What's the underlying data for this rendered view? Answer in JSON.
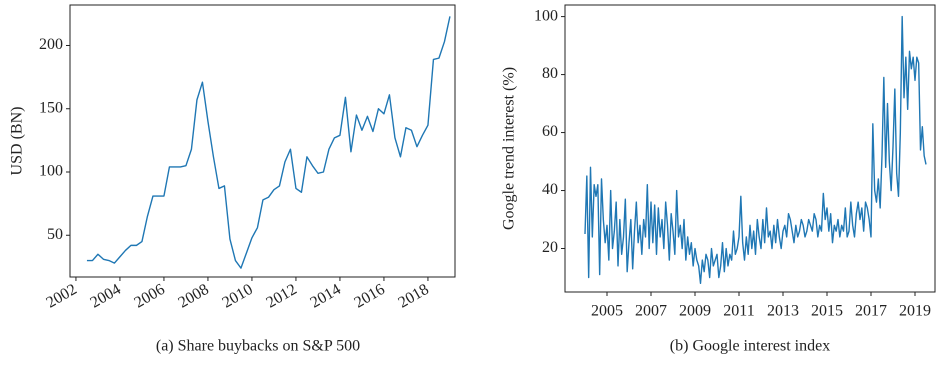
{
  "chart_data": [
    {
      "type": "line",
      "caption": "(a) Share buybacks on S&P 500",
      "ylabel": "USD (BN)",
      "x": [
        2002.5,
        2002.75,
        2003,
        2003.25,
        2003.5,
        2003.75,
        2004,
        2004.25,
        2004.5,
        2004.75,
        2005,
        2005.25,
        2005.5,
        2005.75,
        2006,
        2006.25,
        2006.5,
        2006.75,
        2007,
        2007.25,
        2007.5,
        2007.75,
        2008,
        2008.25,
        2008.5,
        2008.75,
        2009,
        2009.25,
        2009.5,
        2009.75,
        2010,
        2010.25,
        2010.5,
        2010.75,
        2011,
        2011.25,
        2011.5,
        2011.75,
        2012,
        2012.25,
        2012.5,
        2012.75,
        2013,
        2013.25,
        2013.5,
        2013.75,
        2014,
        2014.25,
        2014.5,
        2014.75,
        2015,
        2015.25,
        2015.5,
        2015.75,
        2016,
        2016.25,
        2016.5,
        2016.75,
        2017,
        2017.25,
        2017.5,
        2017.75,
        2018,
        2018.25,
        2018.5,
        2018.75,
        2019
      ],
      "series": [
        {
          "color": "#1f77b4",
          "values": [
            30,
            30,
            35,
            31,
            30,
            28,
            33,
            38,
            42,
            42,
            45,
            65,
            81,
            81,
            81,
            104,
            104,
            104,
            105,
            118,
            157,
            171,
            140,
            112,
            87,
            89,
            47,
            30,
            24,
            36,
            48,
            56,
            78,
            80,
            86,
            89,
            108,
            118,
            87,
            84,
            112,
            105,
            99,
            100,
            118,
            127,
            129,
            159,
            116,
            145,
            133,
            144,
            132,
            150,
            146,
            161,
            127,
            112,
            135,
            133,
            120,
            129,
            137,
            189,
            190,
            203,
            223
          ]
        }
      ],
      "xlim": [
        2001.73,
        2019.23
      ],
      "xticks": [
        2002,
        2004,
        2006,
        2008,
        2010,
        2012,
        2014,
        2016,
        2018
      ],
      "ylim": [
        17,
        232
      ],
      "yticks": [
        50,
        100,
        150,
        200
      ]
    },
    {
      "type": "line",
      "caption": "(b) Google interest index",
      "ylabel": "Google trend interest (%)",
      "categories": [
        null,
        null,
        null,
        null,
        null,
        null,
        null,
        null,
        null,
        null,
        null,
        null,
        "2005",
        null,
        null,
        null,
        null,
        null,
        null,
        null,
        null,
        null,
        null,
        null,
        null,
        null,
        null,
        null,
        null,
        null,
        null,
        null,
        null,
        null,
        null,
        null,
        "2007",
        null,
        null,
        null,
        null,
        null,
        null,
        null,
        null,
        null,
        null,
        null,
        null,
        null,
        null,
        null,
        null,
        null,
        null,
        null,
        null,
        null,
        null,
        null,
        "2009",
        null,
        null,
        null,
        null,
        null,
        null,
        null,
        null,
        null,
        null,
        null,
        null,
        null,
        null,
        null,
        null,
        null,
        null,
        null,
        null,
        null,
        null,
        null,
        "2011",
        null,
        null,
        null,
        null,
        null,
        null,
        null,
        null,
        null,
        null,
        null,
        null,
        null,
        null,
        null,
        null,
        null,
        null,
        null,
        null,
        null,
        null,
        null,
        "2013",
        null,
        null,
        null,
        null,
        null,
        null,
        null,
        null,
        null,
        null,
        null,
        null,
        null,
        null,
        null,
        null,
        null,
        null,
        null,
        null,
        null,
        null,
        null,
        "2015",
        null,
        null,
        null,
        null,
        null,
        null,
        null,
        null,
        null,
        null,
        null,
        null,
        null,
        null,
        null,
        null,
        null,
        null,
        null,
        null,
        null,
        null,
        null,
        "2017",
        null,
        null,
        null,
        null,
        null,
        null,
        null,
        null,
        null,
        null,
        null,
        null,
        null,
        null,
        null,
        null,
        null,
        null,
        null,
        null,
        null,
        null,
        null,
        "2019",
        null,
        null,
        null,
        null,
        null,
        null
      ],
      "series": [
        {
          "color": "#1f77b4",
          "values": [
            25,
            45,
            10,
            48,
            24,
            42,
            38,
            42,
            11,
            44,
            30,
            22,
            28,
            16,
            40,
            20,
            26,
            36,
            14,
            30,
            18,
            24,
            37,
            12,
            22,
            30,
            13,
            26,
            36,
            22,
            28,
            18,
            30,
            24,
            42,
            20,
            36,
            22,
            35,
            18,
            34,
            24,
            30,
            20,
            36,
            28,
            16,
            32,
            26,
            18,
            40,
            24,
            28,
            20,
            30,
            16,
            24,
            18,
            22,
            14,
            20,
            16,
            14,
            8,
            16,
            12,
            18,
            16,
            10,
            20,
            14,
            16,
            18,
            10,
            14,
            22,
            12,
            20,
            14,
            18,
            16,
            26,
            18,
            20,
            24,
            38,
            22,
            16,
            24,
            18,
            28,
            20,
            26,
            18,
            30,
            24,
            20,
            30,
            22,
            34,
            24,
            26,
            20,
            28,
            22,
            30,
            24,
            20,
            26,
            28,
            24,
            32,
            30,
            26,
            22,
            28,
            24,
            26,
            30,
            28,
            24,
            26,
            30,
            28,
            26,
            32,
            30,
            24,
            28,
            26,
            39,
            30,
            34,
            26,
            32,
            22,
            28,
            26,
            30,
            24,
            28,
            26,
            34,
            24,
            26,
            36,
            28,
            24,
            32,
            36,
            30,
            34,
            26,
            36,
            34,
            30,
            24,
            63,
            40,
            36,
            44,
            34,
            52,
            79,
            48,
            70,
            50,
            40,
            55,
            75,
            46,
            38,
            60,
            100,
            72,
            86,
            68,
            88,
            82,
            86,
            78,
            86,
            84,
            54,
            62,
            52,
            49
          ]
        }
      ],
      "ylim": [
        5,
        104
      ],
      "yticks": [
        20,
        40,
        60,
        80,
        100
      ]
    }
  ]
}
